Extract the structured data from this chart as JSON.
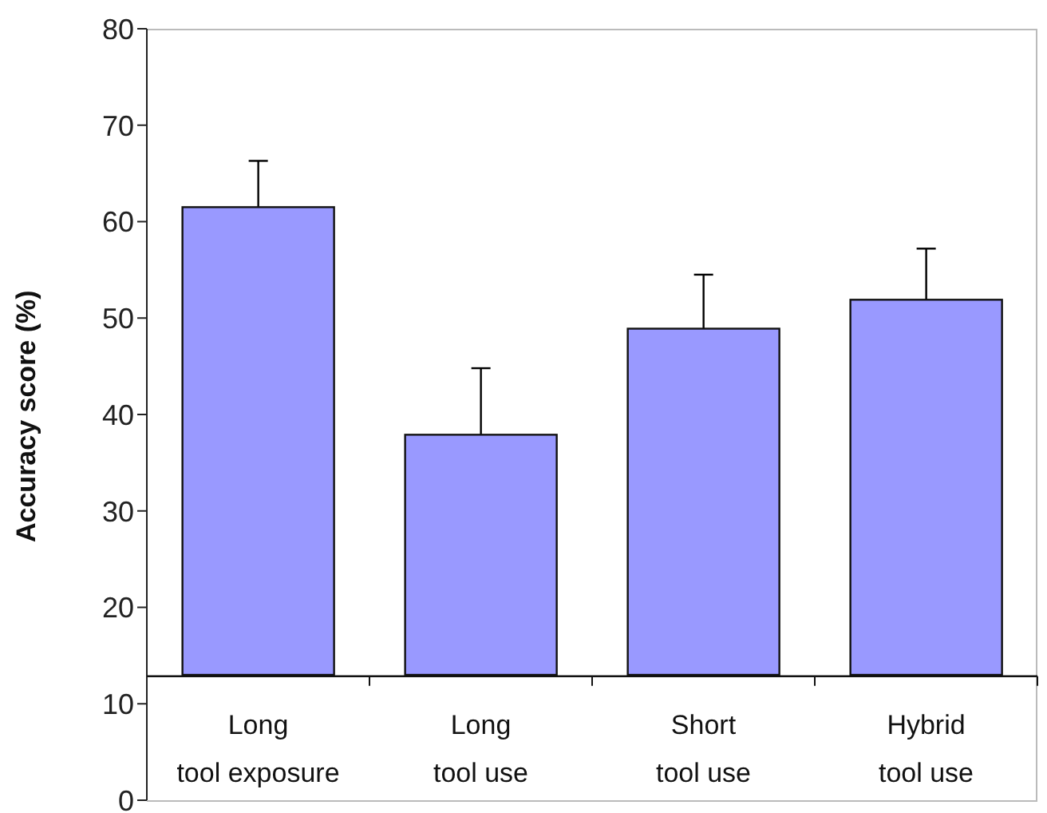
{
  "chart_data": {
    "type": "bar",
    "ylabel": "Accuracy score (%)",
    "categories": [
      "Long tool exposure",
      "Long tool use",
      "Short tool use",
      "Hybrid tool use"
    ],
    "base": [
      13,
      13,
      13,
      13
    ],
    "values": [
      48.5,
      24.9,
      35.9,
      38.9
    ],
    "errors": [
      4.8,
      6.9,
      5.6,
      5.3
    ],
    "color": "#9999ff",
    "ylim": [
      0,
      80
    ],
    "yticks": [
      0,
      10,
      20,
      30,
      40,
      50,
      60,
      70,
      80
    ]
  }
}
